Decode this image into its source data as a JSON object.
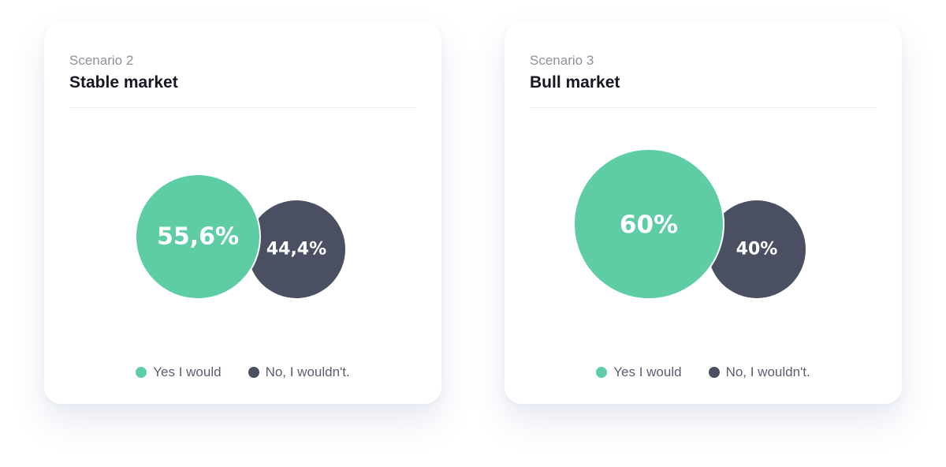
{
  "colors": {
    "yes": "#5ecda4",
    "no": "#4a4f62"
  },
  "legend": {
    "yes_label": "Yes I would",
    "no_label": "No, I wouldn't."
  },
  "cards": [
    {
      "scenario": "Scenario 2",
      "title": "Stable market",
      "yes_label": "55,6%",
      "no_label": "44,4%"
    },
    {
      "scenario": "Scenario 3",
      "title": "Bull market",
      "yes_label": "60%",
      "no_label": "40%"
    }
  ],
  "chart_data": [
    {
      "type": "bubble",
      "title": "Stable market",
      "categories": [
        "Yes I would",
        "No, I wouldn't."
      ],
      "values": [
        55.6,
        44.4
      ],
      "unit": "%"
    },
    {
      "type": "bubble",
      "title": "Bull market",
      "categories": [
        "Yes I would",
        "No, I wouldn't."
      ],
      "values": [
        60,
        40
      ],
      "unit": "%"
    }
  ]
}
